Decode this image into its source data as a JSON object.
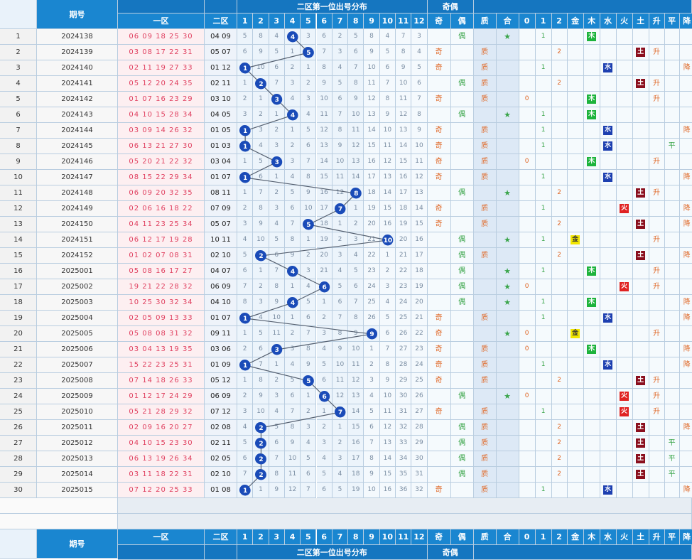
{
  "header": {
    "issue_label": "期号",
    "zone1_label": "一区",
    "zone2_label": "二区",
    "dist_label": "二区第一位出号分布",
    "oddeven_label": "奇偶",
    "odd_label": "奇",
    "even_label": "偶",
    "prime_label": "质",
    "comp_label": "合",
    "dist_cols": [
      "1",
      "2",
      "3",
      "4",
      "5",
      "6",
      "7",
      "8",
      "9",
      "10",
      "11",
      "12"
    ],
    "mod_cols": [
      "0",
      "1",
      "2"
    ],
    "elem_cols": [
      "金",
      "木",
      "水",
      "火",
      "土"
    ],
    "trend_cols": [
      "升",
      "平",
      "降"
    ]
  },
  "colors": {
    "header": "#1a86d0",
    "ball": "#1a4bb8",
    "line": "#556070",
    "odd": "#e06a2a",
    "even": "#3aa54a",
    "star": "#3aa54a",
    "zero": "#e06a2a",
    "gold_bg": "#f2e600",
    "wood_bg": "#1db33c",
    "water_bg": "#1d3fb0",
    "fire_bg": "#e02222",
    "earth_bg": "#8a0f1e",
    "trend": "#e06a2a",
    "level": "#3aa54a"
  },
  "rows": [
    {
      "n": "1",
      "issue": "2024138",
      "z1": "06 09 18 25 30",
      "z2": "04 09",
      "f": 4,
      "oe": "偶",
      "pc": "合",
      "m": "1",
      "e": "木",
      "t": ""
    },
    {
      "n": "2",
      "issue": "2024139",
      "z1": "03 08 17 22 31",
      "z2": "05 07",
      "f": 5,
      "oe": "奇",
      "pc": "质",
      "m": "2",
      "e": "土",
      "t": "升"
    },
    {
      "n": "3",
      "issue": "2024140",
      "z1": "02 11 19 27 33",
      "z2": "01 12",
      "f": 1,
      "oe": "奇",
      "pc": "质",
      "m": "1",
      "e": "水",
      "t": "降"
    },
    {
      "n": "4",
      "issue": "2024141",
      "z1": "05 12 20 24 35",
      "z2": "02 11",
      "f": 2,
      "oe": "偶",
      "pc": "质",
      "m": "2",
      "e": "土",
      "t": "升"
    },
    {
      "n": "5",
      "issue": "2024142",
      "z1": "01 07 16 23 29",
      "z2": "03 10",
      "f": 3,
      "oe": "奇",
      "pc": "质",
      "m": "0",
      "e": "木",
      "t": "升"
    },
    {
      "n": "6",
      "issue": "2024143",
      "z1": "04 10 15 28 34",
      "z2": "04 05",
      "f": 4,
      "oe": "偶",
      "pc": "合",
      "m": "1",
      "e": "木",
      "t": ""
    },
    {
      "n": "7",
      "issue": "2024144",
      "z1": "03 09 14 26 32",
      "z2": "01 05",
      "f": 1,
      "oe": "奇",
      "pc": "质",
      "m": "1",
      "e": "水",
      "t": "降"
    },
    {
      "n": "8",
      "issue": "2024145",
      "z1": "06 13 21 27 30",
      "z2": "01 03",
      "f": 1,
      "oe": "奇",
      "pc": "质",
      "m": "1",
      "e": "水",
      "t": "平"
    },
    {
      "n": "9",
      "issue": "2024146",
      "z1": "05 20 21 22 32",
      "z2": "03 04",
      "f": 3,
      "oe": "奇",
      "pc": "质",
      "m": "0",
      "e": "木",
      "t": "升"
    },
    {
      "n": "10",
      "issue": "2024147",
      "z1": "08 15 22 29 34",
      "z2": "01 07",
      "f": 1,
      "oe": "奇",
      "pc": "质",
      "m": "1",
      "e": "水",
      "t": "降"
    },
    {
      "n": "11",
      "issue": "2024148",
      "z1": "06 09 20 32 35",
      "z2": "08 11",
      "f": 8,
      "oe": "偶",
      "pc": "合",
      "m": "2",
      "e": "土",
      "t": "升"
    },
    {
      "n": "12",
      "issue": "2024149",
      "z1": "02 06 16 18 22",
      "z2": "07 09",
      "f": 7,
      "oe": "奇",
      "pc": "质",
      "m": "1",
      "e": "火",
      "t": "降"
    },
    {
      "n": "13",
      "issue": "2024150",
      "z1": "04 11 23 25 34",
      "z2": "05 07",
      "f": 5,
      "oe": "奇",
      "pc": "质",
      "m": "2",
      "e": "土",
      "t": "降"
    },
    {
      "n": "14",
      "issue": "2024151",
      "z1": "06 12 17 19 28",
      "z2": "10 11",
      "f": 10,
      "oe": "偶",
      "pc": "合",
      "m": "1",
      "e": "金",
      "t": "升"
    },
    {
      "n": "15",
      "issue": "2024152",
      "z1": "01 02 07 08 31",
      "z2": "02 10",
      "f": 2,
      "oe": "偶",
      "pc": "质",
      "m": "2",
      "e": "土",
      "t": "降"
    },
    {
      "n": "16",
      "issue": "2025001",
      "z1": "05 08 16 17 27",
      "z2": "04 07",
      "f": 4,
      "oe": "偶",
      "pc": "合",
      "m": "1",
      "e": "木",
      "t": "升"
    },
    {
      "n": "17",
      "issue": "2025002",
      "z1": "19 21 22 28 32",
      "z2": "06 09",
      "f": 6,
      "oe": "偶",
      "pc": "合",
      "m": "0",
      "e": "火",
      "t": "升"
    },
    {
      "n": "18",
      "issue": "2025003",
      "z1": "10 25 30 32 34",
      "z2": "04 10",
      "f": 4,
      "oe": "偶",
      "pc": "合",
      "m": "1",
      "e": "木",
      "t": "降"
    },
    {
      "n": "19",
      "issue": "2025004",
      "z1": "02 05 09 13 33",
      "z2": "01 07",
      "f": 1,
      "oe": "奇",
      "pc": "质",
      "m": "1",
      "e": "水",
      "t": "降"
    },
    {
      "n": "20",
      "issue": "2025005",
      "z1": "05 08 08 31 32",
      "z2": "09 11",
      "f": 9,
      "oe": "奇",
      "pc": "合",
      "m": "0",
      "e": "金",
      "t": "升"
    },
    {
      "n": "21",
      "issue": "2025006",
      "z1": "03 04 13 19 35",
      "z2": "03 06",
      "f": 3,
      "oe": "奇",
      "pc": "质",
      "m": "0",
      "e": "木",
      "t": "降"
    },
    {
      "n": "22",
      "issue": "2025007",
      "z1": "15 22 23 25 31",
      "z2": "01 09",
      "f": 1,
      "oe": "奇",
      "pc": "质",
      "m": "1",
      "e": "水",
      "t": "降"
    },
    {
      "n": "23",
      "issue": "2025008",
      "z1": "07 14 18 26 33",
      "z2": "05 12",
      "f": 5,
      "oe": "奇",
      "pc": "质",
      "m": "2",
      "e": "土",
      "t": "升"
    },
    {
      "n": "24",
      "issue": "2025009",
      "z1": "01 12 17 24 29",
      "z2": "06 09",
      "f": 6,
      "oe": "偶",
      "pc": "合",
      "m": "0",
      "e": "火",
      "t": "升"
    },
    {
      "n": "25",
      "issue": "2025010",
      "z1": "05 21 28 29 32",
      "z2": "07 12",
      "f": 7,
      "oe": "奇",
      "pc": "质",
      "m": "1",
      "e": "火",
      "t": "升"
    },
    {
      "n": "26",
      "issue": "2025011",
      "z1": "02 09 16 20 27",
      "z2": "02 08",
      "f": 2,
      "oe": "偶",
      "pc": "质",
      "m": "2",
      "e": "土",
      "t": "降"
    },
    {
      "n": "27",
      "issue": "2025012",
      "z1": "04 10 15 23 30",
      "z2": "02 11",
      "f": 2,
      "oe": "偶",
      "pc": "质",
      "m": "2",
      "e": "土",
      "t": "平"
    },
    {
      "n": "28",
      "issue": "2025013",
      "z1": "06 13 19 26 34",
      "z2": "02 05",
      "f": 2,
      "oe": "偶",
      "pc": "质",
      "m": "2",
      "e": "土",
      "t": "平"
    },
    {
      "n": "29",
      "issue": "2025014",
      "z1": "03 11 18 22 31",
      "z2": "02 10",
      "f": 2,
      "oe": "偶",
      "pc": "质",
      "m": "2",
      "e": "土",
      "t": "平"
    },
    {
      "n": "30",
      "issue": "2025015",
      "z1": "07 12 20 25 33",
      "z2": "01 08",
      "f": 1,
      "oe": "奇",
      "pc": "质",
      "m": "1",
      "e": "水",
      "t": "降"
    }
  ],
  "chart_data": {
    "type": "line",
    "title": "二区第一位出号分布",
    "x": [
      1,
      2,
      3,
      4,
      5,
      6,
      7,
      8,
      9,
      10,
      11,
      12,
      13,
      14,
      15,
      16,
      17,
      18,
      19,
      20,
      21,
      22,
      23,
      24,
      25,
      26,
      27,
      28,
      29,
      30
    ],
    "series": [
      {
        "values": [
          4,
          5,
          1,
          2,
          3,
          4,
          1,
          1,
          3,
          1,
          8,
          7,
          5,
          10,
          2,
          4,
          6,
          4,
          1,
          9,
          3,
          1,
          5,
          6,
          7,
          2,
          2,
          2,
          2,
          1
        ]
      }
    ],
    "ylim": [
      1,
      12
    ]
  }
}
